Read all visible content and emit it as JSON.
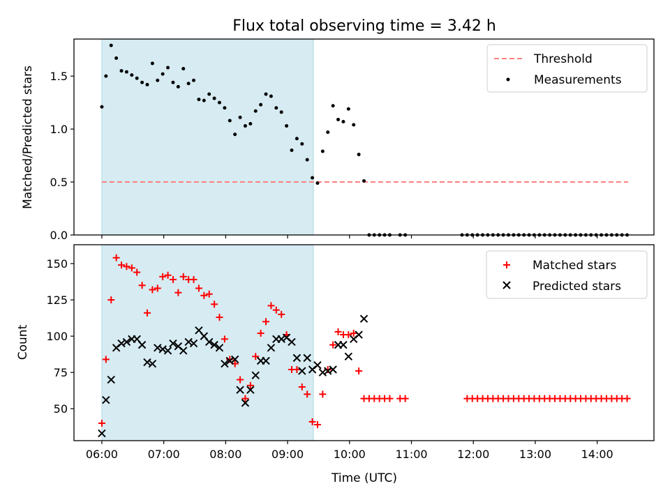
{
  "title": "Flux total observing time = 3.42 h",
  "xlabel": "Time (UTC)",
  "x_ticks": [
    "06:00",
    "07:00",
    "08:00",
    "09:00",
    "10:00",
    "11:00",
    "12:00",
    "13:00",
    "14:00"
  ],
  "colors": {
    "threshold": "#ff7f7f",
    "measurement": "#000000",
    "matched": "#ff0000",
    "predicted": "#000000",
    "shade": "#add8e6"
  },
  "chart_data": [
    {
      "type": "scatter",
      "ylabel": "Matched/Predicted stars",
      "ylim": [
        0,
        1.85
      ],
      "y_ticks": [
        "0.0",
        "0.5",
        "1.0",
        "1.5"
      ],
      "xlim": [
        "05:33",
        "14:55"
      ],
      "shaded_interval": [
        "06:00",
        "09:25"
      ],
      "legend_position": "top-right",
      "legend": [
        "Threshold",
        "Measurements"
      ],
      "threshold": {
        "name": "Threshold",
        "value": 0.5,
        "x_range": [
          "06:00",
          "14:30"
        ],
        "style": "dashed"
      },
      "series": [
        {
          "name": "Measurements",
          "x": [
            "06:00",
            "06:04",
            "06:09",
            "06:14",
            "06:19",
            "06:24",
            "06:29",
            "06:34",
            "06:39",
            "06:44",
            "06:49",
            "06:54",
            "06:59",
            "07:04",
            "07:09",
            "07:14",
            "07:19",
            "07:24",
            "07:29",
            "07:34",
            "07:39",
            "07:44",
            "07:49",
            "07:54",
            "07:59",
            "08:04",
            "08:09",
            "08:14",
            "08:19",
            "08:24",
            "08:29",
            "08:34",
            "08:39",
            "08:44",
            "08:49",
            "08:54",
            "08:59",
            "09:04",
            "09:09",
            "09:14",
            "09:19",
            "09:24",
            "09:29",
            "09:34",
            "09:39",
            "09:44",
            "09:49",
            "09:54",
            "09:59",
            "10:04",
            "10:09",
            "10:14",
            "10:19",
            "10:24",
            "10:29",
            "10:34",
            "10:39",
            "10:49",
            "10:54",
            "11:49",
            "11:54",
            "11:59",
            "12:04",
            "12:09",
            "12:14",
            "12:19",
            "12:24",
            "12:29",
            "12:34",
            "12:39",
            "12:44",
            "12:49",
            "12:54",
            "12:59",
            "13:04",
            "13:09",
            "13:14",
            "13:19",
            "13:24",
            "13:29",
            "13:34",
            "13:39",
            "13:44",
            "13:49",
            "13:54",
            "13:59",
            "14:04",
            "14:09",
            "14:14",
            "14:19",
            "14:24",
            "14:29"
          ],
          "y": [
            1.21,
            1.5,
            1.79,
            1.67,
            1.55,
            1.54,
            1.51,
            1.48,
            1.44,
            1.42,
            1.62,
            1.46,
            1.52,
            1.58,
            1.44,
            1.4,
            1.57,
            1.43,
            1.46,
            1.28,
            1.27,
            1.33,
            1.29,
            1.25,
            1.2,
            1.08,
            0.95,
            1.11,
            1.03,
            1.05,
            1.17,
            1.23,
            1.33,
            1.31,
            1.2,
            1.16,
            1.03,
            0.8,
            0.91,
            0.86,
            0.71,
            0.54,
            0.49,
            0.79,
            0.97,
            1.22,
            1.09,
            1.07,
            1.19,
            1.04,
            0.76,
            0.51,
            0,
            0,
            0,
            0,
            0,
            0,
            0,
            0,
            0,
            0,
            0,
            0,
            0,
            0,
            0,
            0,
            0,
            0,
            0,
            0,
            0,
            0,
            0,
            0,
            0,
            0,
            0,
            0,
            0,
            0,
            0,
            0,
            0,
            0,
            0,
            0,
            0,
            0,
            0,
            0
          ]
        }
      ]
    },
    {
      "type": "scatter",
      "ylabel": "Count",
      "ylim": [
        28,
        163
      ],
      "y_ticks": [
        "50",
        "75",
        "100",
        "125",
        "150"
      ],
      "xlim": [
        "05:33",
        "14:55"
      ],
      "shaded_interval": [
        "06:00",
        "09:25"
      ],
      "legend_position": "top-right",
      "legend": [
        "Matched stars",
        "Predicted stars"
      ],
      "series": [
        {
          "name": "Matched stars",
          "marker": "plus",
          "x": [
            "06:00",
            "06:04",
            "06:09",
            "06:14",
            "06:19",
            "06:24",
            "06:29",
            "06:34",
            "06:39",
            "06:44",
            "06:49",
            "06:54",
            "06:59",
            "07:04",
            "07:09",
            "07:14",
            "07:19",
            "07:24",
            "07:29",
            "07:34",
            "07:39",
            "07:44",
            "07:49",
            "07:54",
            "07:59",
            "08:04",
            "08:09",
            "08:14",
            "08:19",
            "08:24",
            "08:29",
            "08:34",
            "08:39",
            "08:44",
            "08:49",
            "08:54",
            "08:59",
            "09:04",
            "09:09",
            "09:14",
            "09:19",
            "09:24",
            "09:29",
            "09:34",
            "09:39",
            "09:44",
            "09:49",
            "09:54",
            "09:59",
            "10:04",
            "10:09",
            "10:14",
            "10:19",
            "10:24",
            "10:29",
            "10:34",
            "10:39",
            "10:49",
            "10:54",
            "11:54",
            "11:59",
            "12:04",
            "12:09",
            "12:14",
            "12:19",
            "12:24",
            "12:29",
            "12:34",
            "12:39",
            "12:44",
            "12:49",
            "12:54",
            "12:59",
            "13:04",
            "13:09",
            "13:14",
            "13:19",
            "13:24",
            "13:29",
            "13:34",
            "13:39",
            "13:44",
            "13:49",
            "13:54",
            "13:59",
            "14:04",
            "14:09",
            "14:14",
            "14:19",
            "14:24",
            "14:29"
          ],
          "y": [
            40,
            84,
            125,
            154,
            149,
            148,
            147,
            144,
            135,
            116,
            132,
            133,
            141,
            142,
            139,
            130,
            141,
            139,
            139,
            133,
            128,
            129,
            122,
            113,
            98,
            84,
            81,
            70,
            57,
            66,
            86,
            102,
            110,
            121,
            118,
            115,
            101,
            77,
            77,
            65,
            60,
            41,
            39,
            60,
            77,
            94,
            103,
            101,
            101,
            102,
            76,
            57,
            57,
            57,
            57,
            57,
            57,
            57,
            57,
            57,
            57,
            57,
            57,
            57,
            57,
            57,
            57,
            57,
            57,
            57,
            57,
            57,
            57,
            57,
            57,
            57,
            57,
            57,
            57,
            57,
            57,
            57,
            57,
            57,
            57,
            57,
            57,
            57,
            57,
            57,
            57
          ]
        },
        {
          "name": "Predicted stars",
          "marker": "x",
          "x": [
            "06:00",
            "06:04",
            "06:09",
            "06:14",
            "06:19",
            "06:24",
            "06:29",
            "06:34",
            "06:39",
            "06:44",
            "06:49",
            "06:54",
            "06:59",
            "07:04",
            "07:09",
            "07:14",
            "07:19",
            "07:24",
            "07:29",
            "07:34",
            "07:39",
            "07:44",
            "07:49",
            "07:54",
            "07:59",
            "08:04",
            "08:09",
            "08:14",
            "08:19",
            "08:24",
            "08:29",
            "08:34",
            "08:39",
            "08:44",
            "08:49",
            "08:54",
            "08:59",
            "09:04",
            "09:09",
            "09:14",
            "09:19",
            "09:24",
            "09:29",
            "09:34",
            "09:39",
            "09:44",
            "09:49",
            "09:54",
            "09:59",
            "10:04",
            "10:09",
            "10:14"
          ],
          "y": [
            33,
            56,
            70,
            92,
            95,
            96,
            98,
            98,
            94,
            82,
            81,
            92,
            91,
            90,
            95,
            93,
            90,
            96,
            95,
            104,
            100,
            96,
            94,
            92,
            81,
            83,
            84,
            63,
            54,
            63,
            73,
            83,
            83,
            92,
            98,
            98,
            99,
            96,
            85,
            76,
            85,
            77,
            80,
            75,
            76,
            77,
            94,
            94,
            86,
            98,
            101,
            112
          ]
        }
      ]
    }
  ]
}
